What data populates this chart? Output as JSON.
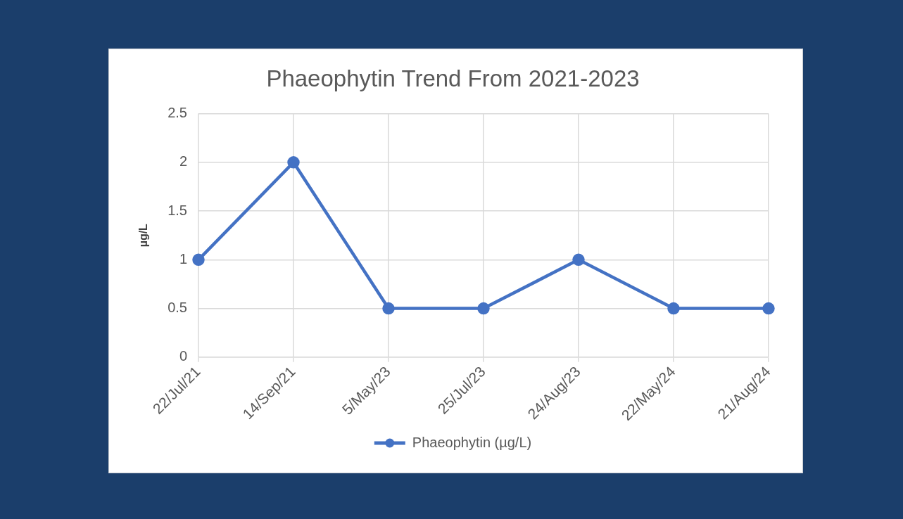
{
  "chart_data": {
    "type": "line",
    "title": "Phaeophytin Trend From 2021-2023",
    "ylabel": "µg/L",
    "categories": [
      "22/Jul/21",
      "14/Sep/21",
      "5/May/23",
      "25/Jul/23",
      "24/Aug/23",
      "22/May/24",
      "21/Aug/24"
    ],
    "series": [
      {
        "name": "Phaeophytin (µg/L)",
        "color": "#4472c4",
        "values": [
          1,
          2,
          0.5,
          0.5,
          1,
          0.5,
          0.5
        ]
      }
    ],
    "ylim": [
      0,
      2.5
    ],
    "yticks": [
      0,
      0.5,
      1,
      1.5,
      2,
      2.5
    ],
    "grid": true,
    "legend": "bottom",
    "marker": "circle",
    "line_style": "solid"
  }
}
